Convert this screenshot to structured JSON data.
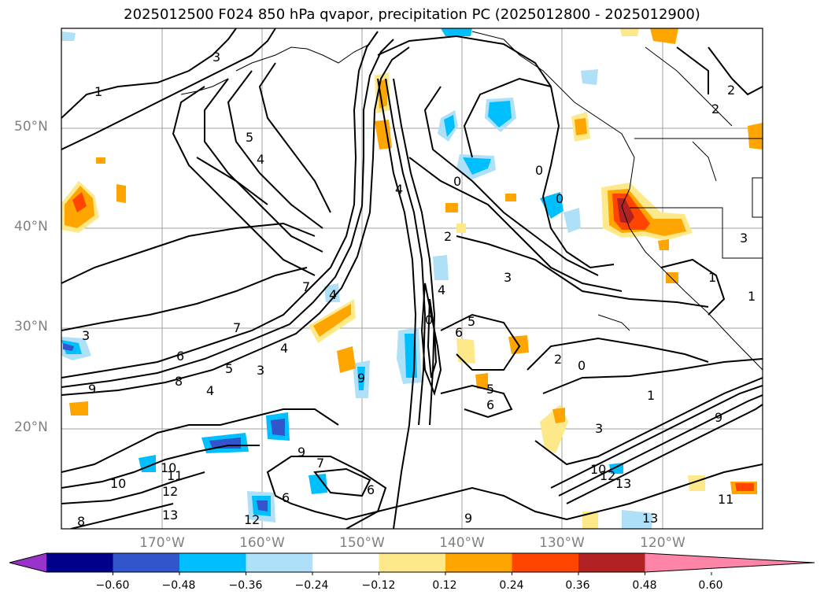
{
  "title": "2025012500 F024 850 hPa qvapor, precipitation PC (2025012800 - 2025012900)",
  "lat_labels": [
    "50°N",
    "40°N",
    "30°N",
    "20°N"
  ],
  "lon_labels": [
    "170°W",
    "160°W",
    "150°W",
    "140°W",
    "130°W",
    "120°W"
  ],
  "contour_labels": [
    "1",
    "2",
    "3",
    "4",
    "5",
    "6",
    "7",
    "8",
    "9",
    "10",
    "11",
    "12",
    "13",
    "0"
  ],
  "colorbar": {
    "ticks": [
      "−0.60",
      "−0.48",
      "−0.36",
      "−0.24",
      "−0.12",
      "0.12",
      "0.24",
      "0.36",
      "0.48",
      "0.60"
    ],
    "colors": [
      "#9933cc",
      "#00008b",
      "#3355cc",
      "#00bfff",
      "#aee0f7",
      "#ffffff",
      "#fde98a",
      "#ffa500",
      "#ff4500",
      "#b22222",
      "#ff85a8"
    ]
  }
}
